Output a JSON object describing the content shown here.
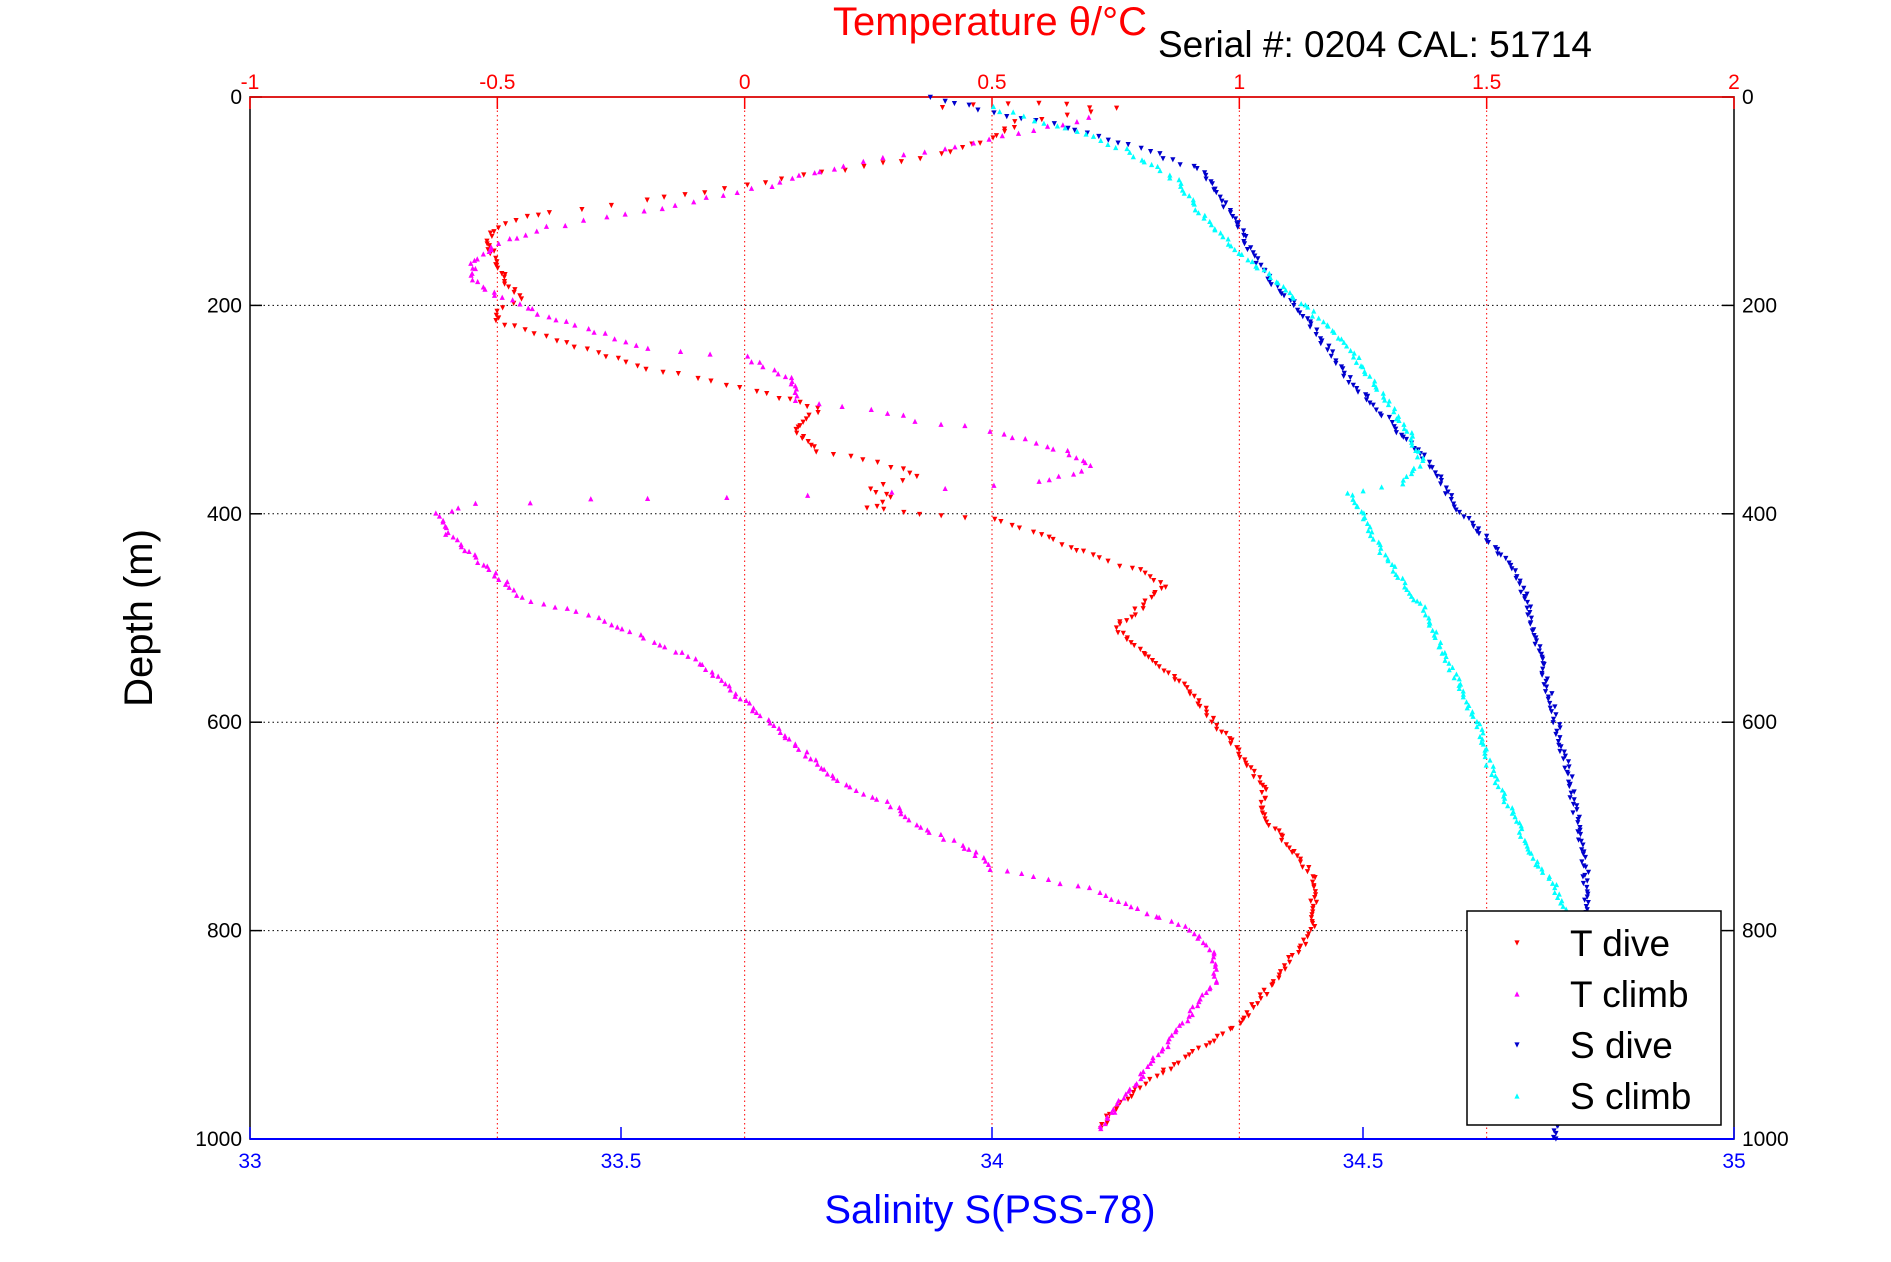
{
  "chart_data": {
    "type": "scatter",
    "title": "Temperature θ/°C",
    "subtitle": "Serial #: 0204   CAL: 51714",
    "xlabel": "Salinity S(PSS-78)",
    "ylabel": "Depth (m)",
    "x_bottom": {
      "label": "Salinity S(PSS-78)",
      "lim": [
        33,
        35
      ],
      "ticks": [
        33,
        33.5,
        34,
        34.5,
        35
      ],
      "tick_labels": [
        "33",
        "33.5",
        "34",
        "34.5",
        "35"
      ],
      "color": "#0000ff"
    },
    "x_top": {
      "label": "Temperature θ/°C",
      "lim": [
        -1,
        2
      ],
      "ticks": [
        -1,
        -0.5,
        0,
        0.5,
        1,
        1.5,
        2
      ],
      "tick_labels": [
        "-1",
        "-0.5",
        "0",
        "0.5",
        "1",
        "1.5",
        "2"
      ],
      "color": "#ff0000"
    },
    "y": {
      "lim": [
        0,
        1000
      ],
      "reversed": true,
      "ticks": [
        0,
        200,
        400,
        600,
        800,
        1000
      ],
      "tick_labels": [
        "0",
        "200",
        "400",
        "600",
        "800",
        "1000"
      ]
    },
    "grid": true,
    "legend_position": "bottom-right",
    "series": [
      {
        "name": "T dive",
        "axis": "temperature",
        "color": "#ff0000",
        "marker": "triangle-down",
        "points": [
          [
            0.4,
            10
          ],
          [
            0.6,
            5
          ],
          [
            0.75,
            12
          ],
          [
            0.55,
            25
          ],
          [
            0.5,
            40
          ],
          [
            0.4,
            55
          ],
          [
            0.2,
            70
          ],
          [
            0.0,
            85
          ],
          [
            -0.2,
            100
          ],
          [
            -0.4,
            110
          ],
          [
            -0.5,
            125
          ],
          [
            -0.52,
            140
          ],
          [
            -0.5,
            160
          ],
          [
            -0.48,
            180
          ],
          [
            -0.45,
            195
          ],
          [
            -0.5,
            205
          ],
          [
            -0.5,
            215
          ],
          [
            -0.4,
            230
          ],
          [
            -0.3,
            245
          ],
          [
            -0.2,
            260
          ],
          [
            -0.1,
            270
          ],
          [
            0.05,
            285
          ],
          [
            0.15,
            300
          ],
          [
            0.1,
            320
          ],
          [
            0.15,
            340
          ],
          [
            0.3,
            355
          ],
          [
            0.35,
            365
          ],
          [
            0.25,
            375
          ],
          [
            0.3,
            385
          ],
          [
            0.25,
            395
          ],
          [
            0.35,
            400
          ],
          [
            0.5,
            405
          ],
          [
            0.6,
            420
          ],
          [
            0.7,
            440
          ],
          [
            0.8,
            455
          ],
          [
            0.85,
            470
          ],
          [
            0.8,
            490
          ],
          [
            0.75,
            510
          ],
          [
            0.8,
            530
          ],
          [
            0.85,
            550
          ],
          [
            0.9,
            570
          ],
          [
            0.95,
            600
          ],
          [
            1.0,
            630
          ],
          [
            1.05,
            660
          ],
          [
            1.05,
            690
          ],
          [
            1.1,
            720
          ],
          [
            1.15,
            750
          ],
          [
            1.15,
            780
          ],
          [
            1.15,
            800
          ],
          [
            1.1,
            830
          ],
          [
            1.05,
            860
          ],
          [
            1.0,
            890
          ],
          [
            0.9,
            920
          ],
          [
            0.8,
            950
          ],
          [
            0.75,
            970
          ],
          [
            0.72,
            990
          ]
        ]
      },
      {
        "name": "T climb",
        "axis": "temperature",
        "color": "#ff00ff",
        "marker": "triangle-up",
        "points": [
          [
            0.7,
            20
          ],
          [
            0.4,
            50
          ],
          [
            0.2,
            65
          ],
          [
            0.05,
            85
          ],
          [
            -0.2,
            110
          ],
          [
            -0.4,
            125
          ],
          [
            -0.5,
            140
          ],
          [
            -0.55,
            160
          ],
          [
            -0.55,
            175
          ],
          [
            -0.5,
            190
          ],
          [
            -0.4,
            210
          ],
          [
            -0.3,
            225
          ],
          [
            -0.2,
            240
          ],
          [
            0.0,
            250
          ],
          [
            0.1,
            270
          ],
          [
            0.1,
            290
          ],
          [
            0.25,
            300
          ],
          [
            0.35,
            310
          ],
          [
            0.5,
            320
          ],
          [
            0.65,
            340
          ],
          [
            0.7,
            355
          ],
          [
            0.6,
            370
          ],
          [
            0.3,
            380
          ],
          [
            -0.2,
            385
          ],
          [
            -0.55,
            390
          ],
          [
            -0.62,
            400
          ],
          [
            -0.6,
            420
          ],
          [
            -0.55,
            440
          ],
          [
            -0.5,
            460
          ],
          [
            -0.45,
            480
          ],
          [
            -0.3,
            500
          ],
          [
            -0.2,
            520
          ],
          [
            -0.1,
            540
          ],
          [
            -0.05,
            560
          ],
          [
            0.0,
            580
          ],
          [
            0.05,
            600
          ],
          [
            0.1,
            620
          ],
          [
            0.15,
            640
          ],
          [
            0.2,
            660
          ],
          [
            0.3,
            680
          ],
          [
            0.35,
            700
          ],
          [
            0.45,
            720
          ],
          [
            0.5,
            740
          ],
          [
            0.7,
            760
          ],
          [
            0.8,
            780
          ],
          [
            0.9,
            800
          ],
          [
            0.95,
            820
          ],
          [
            0.95,
            850
          ],
          [
            0.9,
            880
          ],
          [
            0.85,
            910
          ],
          [
            0.8,
            940
          ],
          [
            0.75,
            970
          ],
          [
            0.72,
            990
          ]
        ]
      },
      {
        "name": "S dive",
        "axis": "salinity",
        "color": "#0000cc",
        "marker": "triangle-down",
        "points": [
          [
            33.92,
            0
          ],
          [
            34.0,
            15
          ],
          [
            34.1,
            30
          ],
          [
            34.2,
            50
          ],
          [
            34.28,
            70
          ],
          [
            34.3,
            90
          ],
          [
            34.33,
            120
          ],
          [
            34.35,
            150
          ],
          [
            34.38,
            180
          ],
          [
            34.42,
            210
          ],
          [
            34.45,
            240
          ],
          [
            34.48,
            270
          ],
          [
            34.52,
            300
          ],
          [
            34.56,
            330
          ],
          [
            34.6,
            360
          ],
          [
            34.62,
            390
          ],
          [
            34.66,
            420
          ],
          [
            34.7,
            450
          ],
          [
            34.72,
            480
          ],
          [
            34.73,
            510
          ],
          [
            34.74,
            540
          ],
          [
            34.75,
            570
          ],
          [
            34.76,
            600
          ],
          [
            34.77,
            630
          ],
          [
            34.78,
            660
          ],
          [
            34.79,
            700
          ],
          [
            34.8,
            740
          ],
          [
            34.8,
            780
          ],
          [
            34.79,
            820
          ],
          [
            34.78,
            860
          ],
          [
            34.77,
            900
          ],
          [
            34.76,
            940
          ],
          [
            34.76,
            980
          ],
          [
            34.76,
            1000
          ]
        ]
      },
      {
        "name": "S climb",
        "axis": "salinity",
        "color": "#00ffff",
        "marker": "triangle-up",
        "points": [
          [
            34.0,
            10
          ],
          [
            34.1,
            30
          ],
          [
            34.18,
            50
          ],
          [
            34.25,
            80
          ],
          [
            34.28,
            110
          ],
          [
            34.32,
            140
          ],
          [
            34.37,
            170
          ],
          [
            34.42,
            200
          ],
          [
            34.47,
            230
          ],
          [
            34.5,
            260
          ],
          [
            34.53,
            290
          ],
          [
            34.56,
            320
          ],
          [
            34.58,
            350
          ],
          [
            34.55,
            370
          ],
          [
            34.48,
            380
          ],
          [
            34.5,
            400
          ],
          [
            34.52,
            430
          ],
          [
            34.55,
            460
          ],
          [
            34.58,
            490
          ],
          [
            34.6,
            520
          ],
          [
            34.62,
            550
          ],
          [
            34.64,
            580
          ],
          [
            34.66,
            610
          ],
          [
            34.67,
            640
          ],
          [
            34.69,
            670
          ],
          [
            34.71,
            700
          ],
          [
            34.73,
            730
          ],
          [
            34.76,
            760
          ],
          [
            34.77,
            780
          ],
          [
            34.77,
            800
          ]
        ]
      }
    ]
  }
}
